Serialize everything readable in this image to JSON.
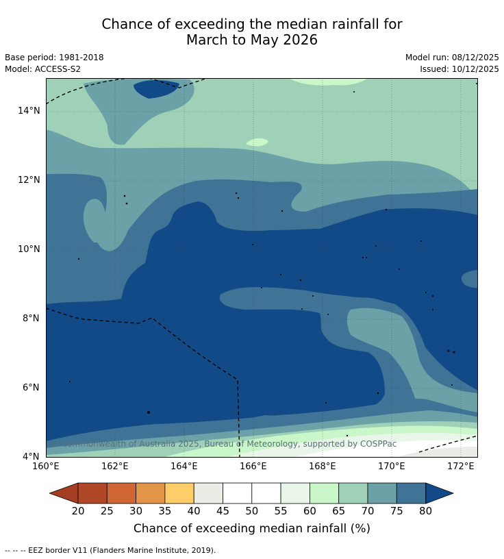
{
  "title": {
    "line1": "Chance of exceeding the median rainfall for",
    "line2": "March to May 2026"
  },
  "meta": {
    "base_period": "Base period: 1981-2018",
    "model": "Model: ACCESS-S2",
    "model_run": "Model run: 08/12/2025",
    "issued": "Issued: 10/12/2025"
  },
  "map": {
    "lat_labels": [
      "14°N",
      "12°N",
      "10°N",
      "8°N",
      "6°N",
      "4°N"
    ],
    "lon_labels": [
      "160°E",
      "162°E",
      "164°E",
      "166°E",
      "168°E",
      "170°E",
      "172°E"
    ],
    "copyright": "© Commonwealth of Australia 2025, Bureau of Meteorology, supported by COSPPac",
    "colors": {
      "c80": "#114a86",
      "c75": "#3f7496",
      "c70": "#6ba1a7",
      "c65": "#9ed1b8",
      "c60": "#c9f7c9",
      "c55": "#e9f6e9",
      "c45": "#ffffff",
      "c40": "#ecebe6"
    }
  },
  "colorbar": {
    "ticks": [
      "20",
      "25",
      "30",
      "35",
      "40",
      "45",
      "50",
      "55",
      "60",
      "65",
      "70",
      "75",
      "80"
    ],
    "title": "Chance of exceeding median rainfall (%)",
    "colors": [
      "#b04726",
      "#cf6633",
      "#e3964a",
      "#fdcd6a",
      "#ecebe6",
      "#ffffff",
      "#ffffff",
      "#e9f6e9",
      "#c9f7c9",
      "#9ed1b8",
      "#6ba1a7",
      "#3f7496"
    ],
    "under_color": "#a53f24",
    "over_color": "#114a86"
  },
  "footer": "--  --  -- EEZ border V11 (Flanders Marine Institute, 2019)."
}
